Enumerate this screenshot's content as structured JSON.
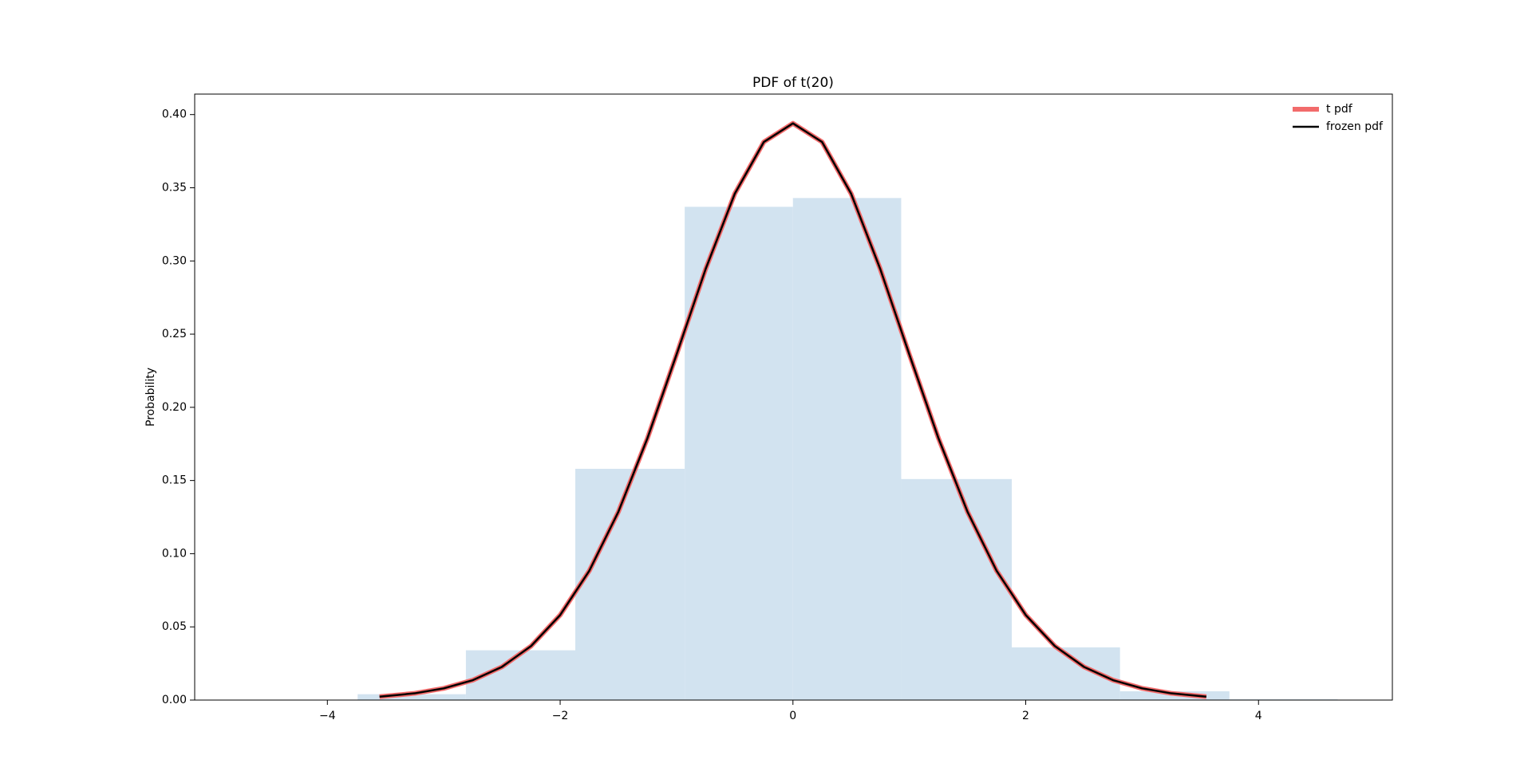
{
  "chart_data": {
    "type": "line",
    "title": "PDF of t(20)",
    "ylabel": "Probability",
    "x": [
      -3.552,
      -3.25,
      -3.0,
      -2.75,
      -2.5,
      -2.25,
      -2.0,
      -1.75,
      -1.5,
      -1.25,
      -1.0,
      -0.75,
      -0.5,
      -0.25,
      0,
      0.25,
      0.5,
      0.75,
      1.0,
      1.25,
      1.5,
      1.75,
      2.0,
      2.25,
      2.5,
      2.75,
      3.0,
      3.25,
      3.552
    ],
    "series": [
      {
        "name": "t pdf",
        "color": "#f26b6b",
        "width": 6,
        "values": [
          0.0023,
          0.0046,
          0.008,
          0.0136,
          0.0227,
          0.0369,
          0.0581,
          0.0883,
          0.1286,
          0.1789,
          0.2361,
          0.2945,
          0.3459,
          0.3813,
          0.394,
          0.3813,
          0.3459,
          0.2945,
          0.2361,
          0.1789,
          0.1286,
          0.0883,
          0.0581,
          0.0369,
          0.0227,
          0.0136,
          0.008,
          0.0046,
          0.0023
        ]
      },
      {
        "name": "frozen pdf",
        "color": "#000000",
        "width": 2.5,
        "values": [
          0.0023,
          0.0046,
          0.008,
          0.0136,
          0.0227,
          0.0369,
          0.0581,
          0.0883,
          0.1286,
          0.1789,
          0.2361,
          0.2945,
          0.3459,
          0.3813,
          0.394,
          0.3813,
          0.3459,
          0.2945,
          0.2361,
          0.1789,
          0.1286,
          0.0883,
          0.0581,
          0.0369,
          0.0227,
          0.0136,
          0.008,
          0.0046,
          0.0023
        ]
      }
    ],
    "histogram": {
      "color": "#d2e3f0",
      "bins": [
        -3.74,
        -2.81,
        -1.87,
        -0.93,
        0.0,
        0.93,
        1.88,
        2.81,
        3.75,
        4.68
      ],
      "values": [
        0.004,
        0.034,
        0.158,
        0.337,
        0.343,
        0.151,
        0.036,
        0.006,
        0.0005
      ]
    },
    "xlim": [
      -5.14,
      5.15
    ],
    "xticks": [
      {
        "value": -4,
        "label": "−4"
      },
      {
        "value": -2,
        "label": "−2"
      },
      0,
      2,
      4
    ],
    "ylim": [
      0,
      0.414
    ],
    "yticks": [
      {
        "value": 0,
        "label": "0.00"
      },
      {
        "value": 0.05,
        "label": "0.05"
      },
      {
        "value": 0.1,
        "label": "0.10"
      },
      {
        "value": 0.15,
        "label": "0.15"
      },
      {
        "value": 0.2,
        "label": "0.20"
      },
      {
        "value": 0.25,
        "label": "0.25"
      },
      {
        "value": 0.3,
        "label": "0.30"
      },
      {
        "value": 0.35,
        "label": "0.35"
      },
      {
        "value": 0.4,
        "label": "0.40"
      }
    ],
    "legend": "upper right"
  }
}
